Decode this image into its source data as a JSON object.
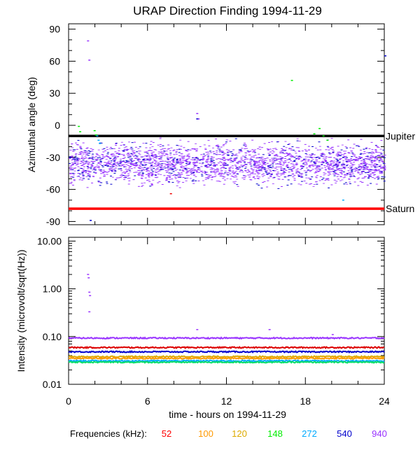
{
  "chart_data": [
    {
      "type": "scatter",
      "title": "URAP Direction Finding  1994-11-29",
      "ylabel": "Azimuthal angle (deg)",
      "xlim": [
        0,
        24
      ],
      "ylim": [
        -93,
        95
      ],
      "yticks": [
        90,
        60,
        30,
        0,
        -30,
        -60,
        -90
      ],
      "reference_lines": [
        {
          "name": "Jupiter",
          "value": -10,
          "color": "#000000"
        },
        {
          "name": "Saturn",
          "value": -78,
          "color": "#ff0000"
        }
      ],
      "series": [
        {
          "name": "940",
          "color": "#9933ff",
          "band_center": -36,
          "band_spread": 9,
          "x": [
            1.4,
            1.5,
            9.7,
            9.8,
            22.8
          ],
          "y": [
            79,
            61,
            11,
            6,
            -48
          ]
        },
        {
          "name": "540",
          "color": "#0000cc",
          "x": [
            1.6,
            9.7,
            15.2,
            24.0
          ],
          "y": [
            -89,
            6,
            -28,
            65
          ]
        },
        {
          "name": "272",
          "color": "#00aaff",
          "x": [
            2.1,
            2.2,
            2.3,
            20.8
          ],
          "y": [
            -10,
            -14,
            -17,
            -70
          ]
        },
        {
          "name": "148",
          "color": "#00ee00",
          "x": [
            0.7,
            0.8,
            1.9,
            2.0,
            16.9,
            18.6,
            19.0,
            19.3,
            19.6
          ],
          "y": [
            -1,
            -6,
            -5,
            -9,
            42,
            -8,
            -3,
            -10,
            -14
          ]
        },
        {
          "name": "52",
          "color": "#ee0000",
          "x": [
            7.7
          ],
          "y": [
            -64
          ]
        }
      ]
    },
    {
      "type": "line",
      "ylabel": "Intensity (microvolt/sqrt(Hz))",
      "xlabel": "time - hours on 1994-11-29",
      "xlim": [
        0,
        24
      ],
      "xticks": [
        0,
        6,
        12,
        18,
        24
      ],
      "xtick_labels": [
        "0",
        "6",
        "12",
        "18",
        "24"
      ],
      "yscale": "log",
      "ylim": [
        0.01,
        12
      ],
      "yticks": [
        10.0,
        1.0,
        0.1,
        0.01
      ],
      "ytick_labels": [
        "10.00",
        "1.00",
        "0.10",
        "0.01"
      ],
      "series": [
        {
          "name": "940",
          "color": "#9933ff",
          "level": 0.093,
          "spikes": [
            [
              1.4,
              2.0
            ],
            [
              1.45,
              1.7
            ],
            [
              1.5,
              0.85
            ],
            [
              1.55,
              0.72
            ],
            [
              1.5,
              0.33
            ],
            [
              9.7,
              0.14
            ],
            [
              15.2,
              0.14
            ],
            [
              20.0,
              0.11
            ]
          ]
        },
        {
          "name": "52",
          "color": "#dd0000",
          "level": 0.059
        },
        {
          "name": "540",
          "color": "#0000cc",
          "level": 0.048
        },
        {
          "name": "120",
          "color": "#ddaa00",
          "level": 0.038
        },
        {
          "name": "100",
          "color": "#ff9900",
          "level": 0.035
        },
        {
          "name": "272",
          "color": "#00aaff",
          "level": 0.031
        },
        {
          "name": "148",
          "color": "#00dd66",
          "level": 0.029
        }
      ]
    }
  ],
  "legend": {
    "label": "Frequencies (kHz):",
    "items": [
      {
        "text": "52",
        "color": "#ff0000"
      },
      {
        "text": "100",
        "color": "#ff9900"
      },
      {
        "text": "120",
        "color": "#ddaa00"
      },
      {
        "text": "148",
        "color": "#00ee00"
      },
      {
        "text": "272",
        "color": "#00aaff"
      },
      {
        "text": "540",
        "color": "#0000cc"
      },
      {
        "text": "940",
        "color": "#9933ff"
      }
    ]
  }
}
